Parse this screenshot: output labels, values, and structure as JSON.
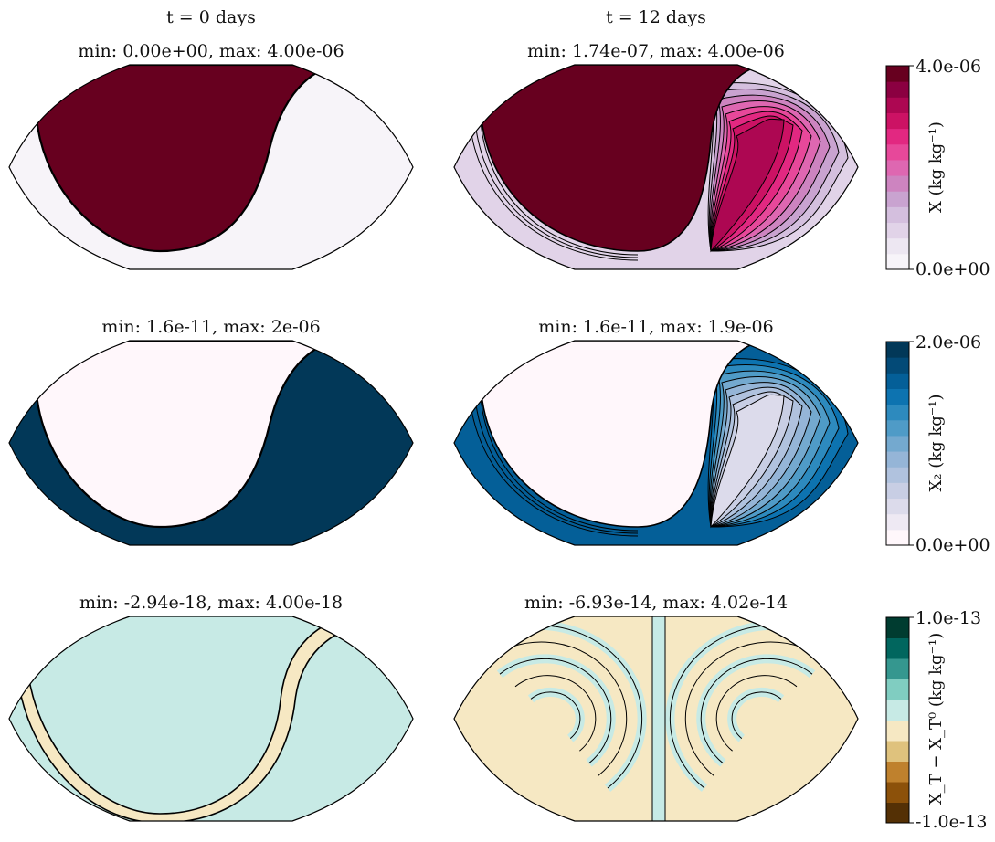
{
  "chart_data": [
    {
      "type": "heatmap",
      "column_title": "t = 0 days",
      "title": "min:  0.00e+00, max:  4.00e-06",
      "variable": "X",
      "pattern": "initial",
      "colorscale": "PuRd"
    },
    {
      "type": "heatmap",
      "column_title": "t = 12 days",
      "title": "min:  1.74e-07, max:  4.00e-06",
      "variable": "X",
      "pattern": "advected",
      "colorscale": "PuRd"
    },
    {
      "type": "heatmap",
      "title": "min:  1.6e-11, max:  2e-06",
      "variable": "X_2",
      "pattern": "initial-inverse",
      "colorscale": "PuBu"
    },
    {
      "type": "heatmap",
      "title": "min:  1.6e-11, max:  1.9e-06",
      "variable": "X_2",
      "pattern": "advected-inverse",
      "colorscale": "PuBu"
    },
    {
      "type": "heatmap",
      "title": "min:  -2.94e-18, max:  4.00e-18",
      "variable": "X_T - X_T^0",
      "pattern": "band",
      "colorscale": "BrBG"
    },
    {
      "type": "heatmap",
      "title": "min:  -6.93e-14, max:  4.02e-14",
      "variable": "X_T - X_T^0",
      "pattern": "filaments",
      "colorscale": "BrBG"
    }
  ],
  "colorbars": [
    {
      "max_label": "4.0e-06",
      "min_label": "0.0e+00",
      "label": "X  (kg kg⁻¹)",
      "colors": [
        "#f7f4f9",
        "#ede7f2",
        "#e1d3e8",
        "#d4bfde",
        "#c9a3d0",
        "#cd84c0",
        "#de67b1",
        "#e7489a",
        "#e22881",
        "#cc1264",
        "#ad0752",
        "#8b0041",
        "#67001f"
      ]
    },
    {
      "max_label": "2.0e-06",
      "min_label": "0.0e+00",
      "label": "X₂  (kg kg⁻¹)",
      "colors": [
        "#fff7fb",
        "#eee9f3",
        "#dcdbeb",
        "#c8cee4",
        "#b0c2de",
        "#95b5d7",
        "#74a9cf",
        "#4f9bc7",
        "#2d8abe",
        "#0d73b0",
        "#045f98",
        "#034a77",
        "#023858"
      ]
    },
    {
      "max_label": "1.0e-13",
      "min_label": "-1.0e-13",
      "label": "X_T − X_T⁰  (kg kg⁻¹)",
      "colors": [
        "#543005",
        "#8c510a",
        "#bf812d",
        "#dfc27d",
        "#f6e8c3",
        "#c7eae5",
        "#80cdc1",
        "#35978f",
        "#01665e",
        "#003c30"
      ]
    }
  ]
}
